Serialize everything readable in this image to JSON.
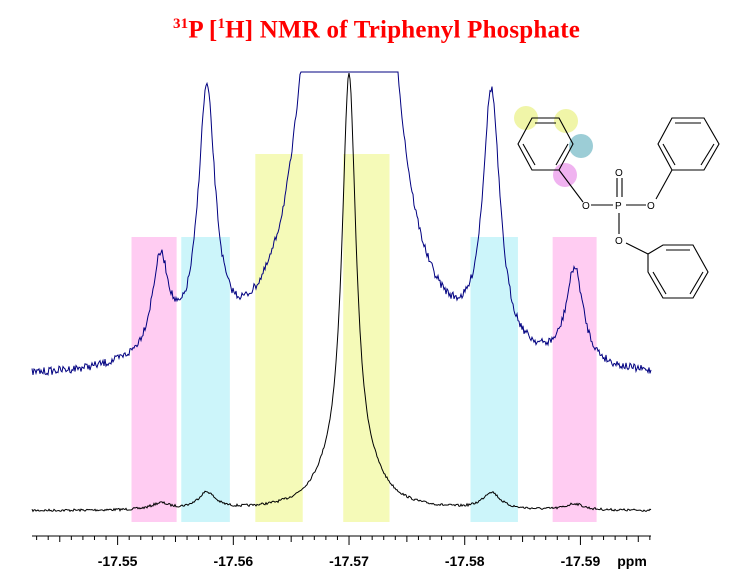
{
  "colors": {
    "title": "#ff0000",
    "scaled_trace": "#000080",
    "full_trace": "#000000",
    "band_pink": "#ffccf2",
    "band_cyan": "#ccf5fa",
    "band_yellow": "#f5fab8",
    "highlight_ortho": "#f0f5a8",
    "highlight_meta": "#9ccdd6",
    "highlight_ipso": "#f0b3f0"
  },
  "chart_data": {
    "type": "line",
    "title": {
      "pre_sup": "31",
      "a": "P [",
      "inner_sup": "1",
      "b": "H] NMR of Triphenyl Phosphate"
    },
    "xlabel": "ppm",
    "x_reversed": true,
    "xlim": [
      -17.5426,
      -17.5961
    ],
    "x_ticks": [
      "-17.55",
      "-17.56",
      "-17.57",
      "-17.58",
      "-17.59"
    ],
    "x_tick_values": [
      -17.55,
      -17.56,
      -17.57,
      -17.58,
      -17.59
    ],
    "grid": false,
    "y_axis_shown": false,
    "coupling_bands": [
      {
        "color": "pink",
        "from": -17.5512,
        "to": -17.5551
      },
      {
        "color": "cyan",
        "from": -17.5555,
        "to": -17.5597
      },
      {
        "color": "yellow",
        "from": -17.5619,
        "to": -17.566
      },
      {
        "color": "yellow",
        "from": -17.5695,
        "to": -17.5735
      },
      {
        "color": "cyan",
        "from": -17.5805,
        "to": -17.5846
      },
      {
        "color": "pink",
        "from": -17.5876,
        "to": -17.5914
      }
    ],
    "series": [
      {
        "role": "full-spectrum",
        "color": "#000000",
        "peaks": [
          {
            "x": -17.57,
            "height": 1.0,
            "width": 0.00075
          },
          {
            "x": -17.5718,
            "height": 0.04,
            "width": 0.0018
          },
          {
            "x": -17.5682,
            "height": 0.04,
            "width": 0.0018
          },
          {
            "x": -17.5577,
            "height": 0.04,
            "width": 0.0009
          },
          {
            "x": -17.5823,
            "height": 0.04,
            "width": 0.0009
          },
          {
            "x": -17.5537,
            "height": 0.015,
            "width": 0.0009
          },
          {
            "x": -17.5895,
            "height": 0.015,
            "width": 0.0009
          }
        ]
      },
      {
        "role": "vertically-expanded",
        "color": "#000080",
        "peaks": [
          {
            "x": -17.57,
            "height": 1.0,
            "width": 0.00075
          },
          {
            "x": -17.5718,
            "height": 0.04,
            "width": 0.0018
          },
          {
            "x": -17.5682,
            "height": 0.04,
            "width": 0.0018
          },
          {
            "x": -17.5577,
            "height": 0.04,
            "width": 0.0009
          },
          {
            "x": -17.5823,
            "height": 0.04,
            "width": 0.0009
          },
          {
            "x": -17.5537,
            "height": 0.015,
            "width": 0.0009
          },
          {
            "x": -17.5895,
            "height": 0.015,
            "width": 0.0009
          }
        ]
      }
    ]
  },
  "structure": {
    "atom_labels": {
      "phosphorus": "P",
      "double_bond_oxygen": "O",
      "ester_oxygen_left": "O",
      "ester_oxygen_right": "O",
      "ester_oxygen_bottom": "O"
    }
  }
}
